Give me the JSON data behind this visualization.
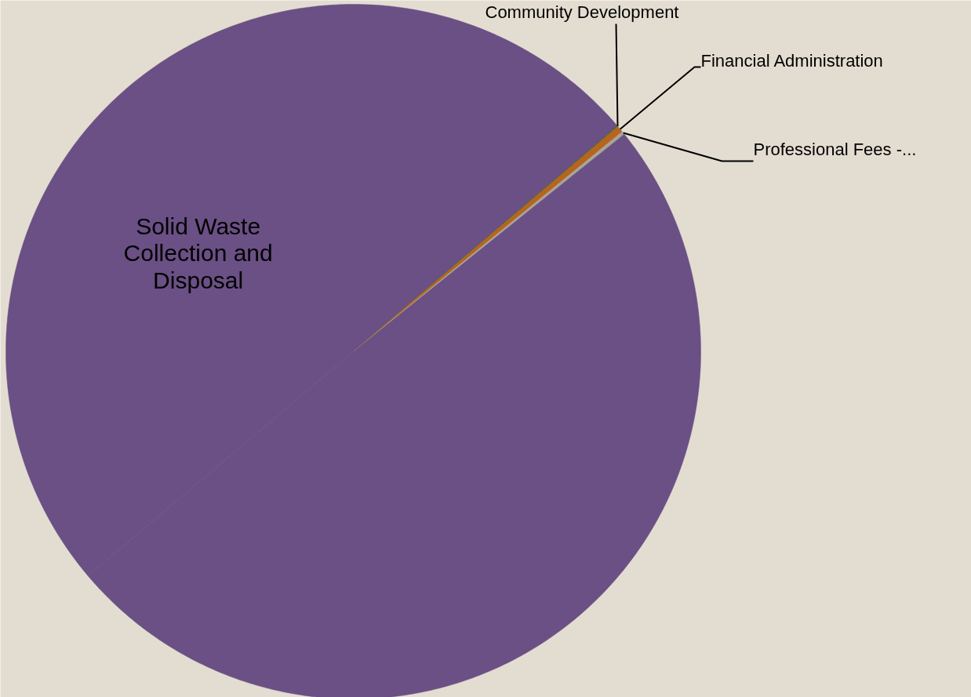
{
  "chart_data": {
    "type": "pie",
    "categories": [
      "Solid Waste Collection and Disposal",
      "Community Development",
      "Financial Administration",
      "Professional Fees -...",
      null
    ],
    "values": [
      49.9,
      0.05,
      0.3,
      0.15,
      49.6
    ],
    "colors": [
      "#6a5084",
      "#4f6228",
      "#b5651d",
      "#a8a49a",
      "#6a5084"
    ]
  }
}
